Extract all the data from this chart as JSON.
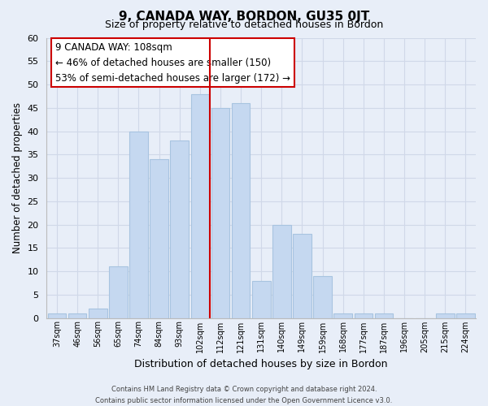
{
  "title": "9, CANADA WAY, BORDON, GU35 0JT",
  "subtitle": "Size of property relative to detached houses in Bordon",
  "xlabel": "Distribution of detached houses by size in Bordon",
  "ylabel": "Number of detached properties",
  "categories": [
    "37sqm",
    "46sqm",
    "56sqm",
    "65sqm",
    "74sqm",
    "84sqm",
    "93sqm",
    "102sqm",
    "112sqm",
    "121sqm",
    "131sqm",
    "140sqm",
    "149sqm",
    "159sqm",
    "168sqm",
    "177sqm",
    "187sqm",
    "196sqm",
    "205sqm",
    "215sqm",
    "224sqm"
  ],
  "values": [
    1,
    1,
    2,
    11,
    40,
    34,
    38,
    48,
    45,
    46,
    8,
    20,
    18,
    9,
    1,
    1,
    1,
    0,
    0,
    1,
    1
  ],
  "bar_color": "#c5d8f0",
  "bar_edge_color": "#a8c4e0",
  "vline_color": "#cc0000",
  "vline_x_idx": 7,
  "ylim": [
    0,
    60
  ],
  "yticks": [
    0,
    5,
    10,
    15,
    20,
    25,
    30,
    35,
    40,
    45,
    50,
    55,
    60
  ],
  "annotation_title": "9 CANADA WAY: 108sqm",
  "annotation_line1": "← 46% of detached houses are smaller (150)",
  "annotation_line2": "53% of semi-detached houses are larger (172) →",
  "annotation_box_color": "#ffffff",
  "annotation_box_edge": "#cc0000",
  "footer_line1": "Contains HM Land Registry data © Crown copyright and database right 2024.",
  "footer_line2": "Contains public sector information licensed under the Open Government Licence v3.0.",
  "background_color": "#e8eef8",
  "grid_color": "#d0d8e8"
}
